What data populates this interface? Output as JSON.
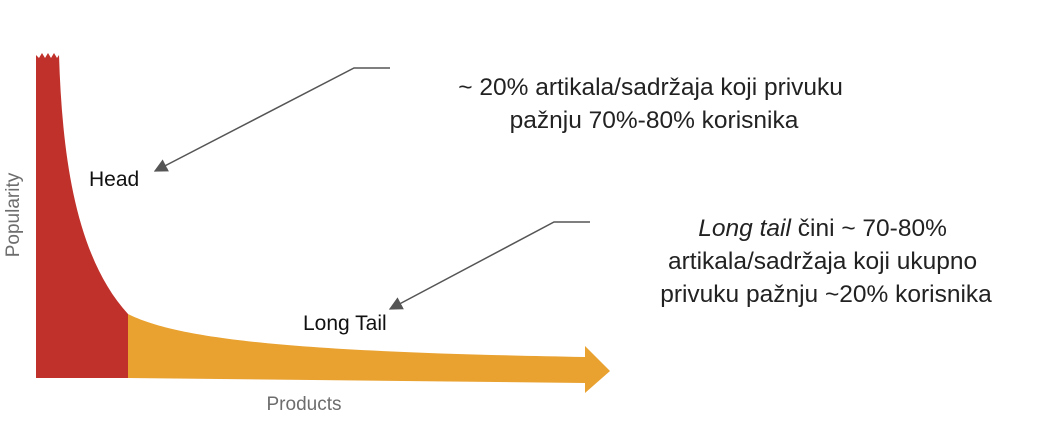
{
  "axes": {
    "y_label": "Popularity",
    "x_label": "Products"
  },
  "regions": {
    "head_label": "Head",
    "tail_label": "Long Tail"
  },
  "annotations": {
    "head_note": {
      "line1": "~ 20% artikala/sadržaja koji privuku",
      "line2": "pažnju 70%-80%  korisnika"
    },
    "tail_note": {
      "line1_italic": "Long tail",
      "line1_rest": " čini ~ 70-80%",
      "line2": "artikala/sadržaja koji ukupno",
      "line3": "privuku pažnju ~20% korisnika"
    }
  },
  "colors": {
    "head": "#c1312b",
    "tail": "#e9a12f",
    "arrow": "#555555",
    "axis_text": "#6d6d6d"
  }
}
